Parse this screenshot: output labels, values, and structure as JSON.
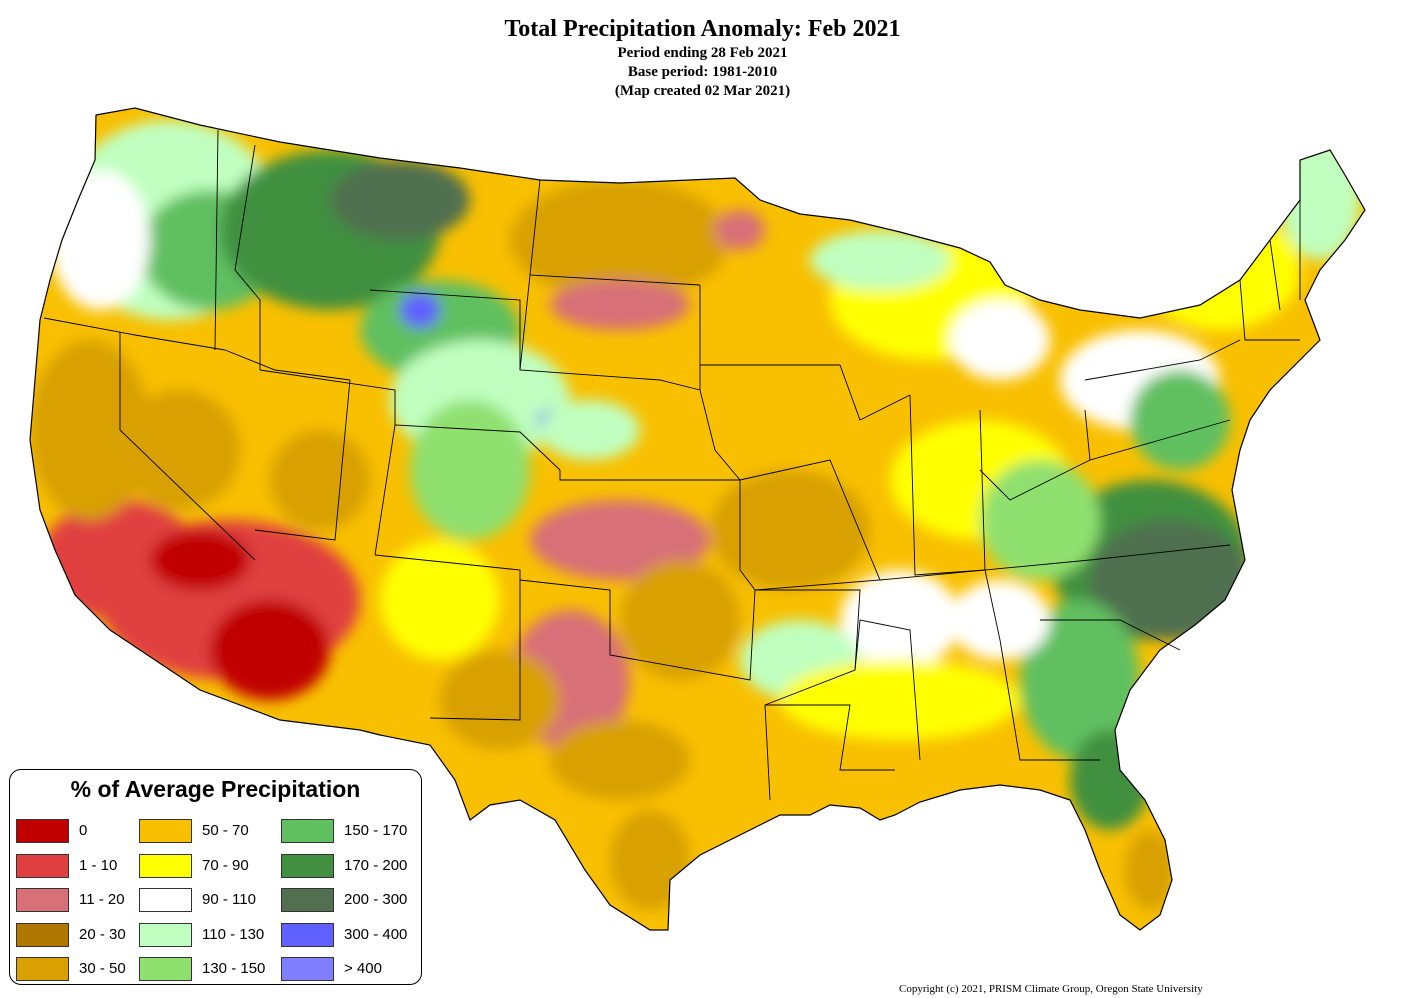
{
  "title": {
    "main": "Total Precipitation Anomaly: Feb 2021",
    "period": "Period ending 28 Feb 2021",
    "base": "Base period: 1981-2010",
    "created": "(Map created 02 Mar 2021)"
  },
  "legend": {
    "title": "% of Average Precipitation",
    "items": [
      {
        "label": "0",
        "color": "#c00000"
      },
      {
        "label": "1 - 10",
        "color": "#e04040"
      },
      {
        "label": "11 - 20",
        "color": "#d87078"
      },
      {
        "label": "20 - 30",
        "color": "#b07800"
      },
      {
        "label": "30 - 50",
        "color": "#d8a000"
      },
      {
        "label": "50 - 70",
        "color": "#f8c000"
      },
      {
        "label": "70 - 90",
        "color": "#ffff00"
      },
      {
        "label": "90 - 110",
        "color": "#ffffff"
      },
      {
        "label": "110 - 130",
        "color": "#c0ffc0"
      },
      {
        "label": "130 - 150",
        "color": "#90e070"
      },
      {
        "label": "150 - 170",
        "color": "#60c060"
      },
      {
        "label": "170 - 200",
        "color": "#409040"
      },
      {
        "label": "200 - 300",
        "color": "#507050"
      },
      {
        "label": "300 - 400",
        "color": "#6060ff"
      },
      {
        "label": "> 400",
        "color": "#8080ff"
      }
    ]
  },
  "copyright": "Copyright (c) 2021, PRISM Climate Group, Oregon State University"
}
